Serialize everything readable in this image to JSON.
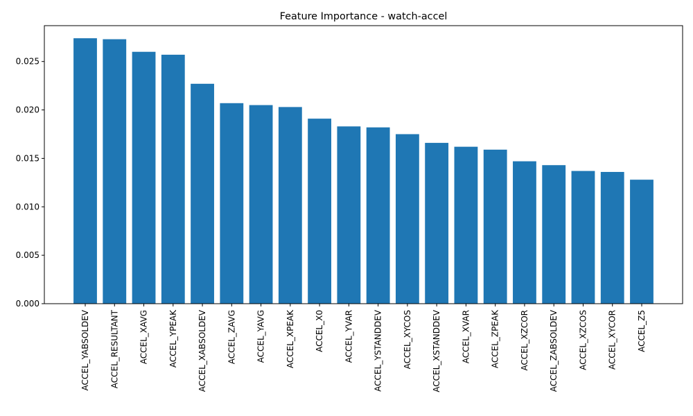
{
  "chart_data": {
    "type": "bar",
    "title": "Feature Importance - watch-accel",
    "xlabel": "",
    "ylabel": "",
    "ylim": [
      0,
      0.0287
    ],
    "yticks": [
      "0.000",
      "0.005",
      "0.010",
      "0.015",
      "0.020",
      "0.025"
    ],
    "grid": false,
    "bar_color": "#1f77b4",
    "categories": [
      "ACCEL_YABSOLDEV",
      "ACCEL_RESULTANT",
      "ACCEL_XAVG",
      "ACCEL_YPEAK",
      "ACCEL_XABSOLDEV",
      "ACCEL_ZAVG",
      "ACCEL_YAVG",
      "ACCEL_XPEAK",
      "ACCEL_X0",
      "ACCEL_YVAR",
      "ACCEL_YSTANDDEV",
      "ACCEL_XYCOS",
      "ACCEL_XSTANDDEV",
      "ACCEL_XVAR",
      "ACCEL_ZPEAK",
      "ACCEL_XZCOR",
      "ACCEL_ZABSOLDEV",
      "ACCEL_XZCOS",
      "ACCEL_XYCOR",
      "ACCEL_Z5"
    ],
    "values": [
      0.0274,
      0.0273,
      0.026,
      0.0257,
      0.0227,
      0.0207,
      0.0205,
      0.0203,
      0.0191,
      0.0183,
      0.0182,
      0.0175,
      0.0166,
      0.0162,
      0.0159,
      0.0147,
      0.0143,
      0.0137,
      0.0136,
      0.0128
    ]
  }
}
